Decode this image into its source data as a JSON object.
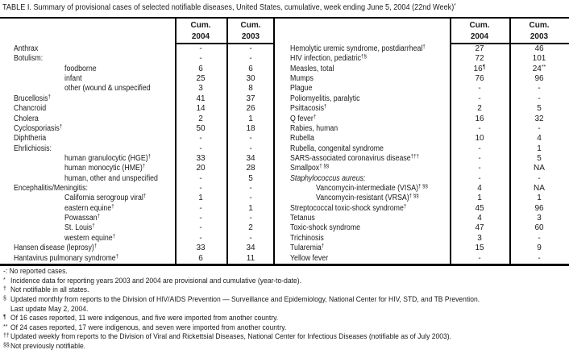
{
  "title": {
    "text": "TABLE I. Summary of provisional cases of selected notifiable diseases, United States, cumulative, week ending June 5, 2004 (22nd Week)",
    "sup": "*"
  },
  "columns": {
    "cum": "Cum.",
    "year_2004": "2004",
    "year_2003": "2003"
  },
  "tables": {
    "left": {
      "rows": [
        {
          "label": "Anthrax",
          "cum2004": "-",
          "cum2003": "-"
        },
        {
          "label": "Botulism:",
          "cum2004": "-",
          "cum2003": "-"
        },
        {
          "label": "foodborne",
          "indent": 1,
          "cum2004": "6",
          "cum2003": "6"
        },
        {
          "label": "infant",
          "indent": 1,
          "cum2004": "25",
          "cum2003": "30"
        },
        {
          "label": "other (wound & unspecified",
          "indent": 1,
          "cum2004": "3",
          "cum2003": "8"
        },
        {
          "label": "Brucellosis",
          "sup": "†",
          "cum2004": "41",
          "cum2003": "37"
        },
        {
          "label": "Chancroid",
          "cum2004": "14",
          "cum2003": "26"
        },
        {
          "label": "Cholera",
          "cum2004": "2",
          "cum2003": "1"
        },
        {
          "label": "Cyclosporiasis",
          "sup": "†",
          "cum2004": "50",
          "cum2003": "18"
        },
        {
          "label": "Diphtheria",
          "cum2004": "-",
          "cum2003": "-"
        },
        {
          "label": "Ehrlichiosis:",
          "cum2004": "-",
          "cum2003": "-"
        },
        {
          "label": "human granulocytic (HGE)",
          "sup": "†",
          "indent": 1,
          "cum2004": "33",
          "cum2003": "34"
        },
        {
          "label": "human monocytic (HME)",
          "sup": "†",
          "indent": 1,
          "cum2004": "20",
          "cum2003": "28"
        },
        {
          "label": "human, other and unspecified",
          "indent": 1,
          "cum2004": "-",
          "cum2003": "5"
        },
        {
          "label": "Encephalitis/Meningitis:",
          "cum2004": "-",
          "cum2003": "-"
        },
        {
          "label": "California serogroup viral",
          "sup": "†",
          "indent": 1,
          "cum2004": "1",
          "cum2003": "-"
        },
        {
          "label": "eastern equine",
          "sup": "†",
          "indent": 1,
          "cum2004": "-",
          "cum2003": "1"
        },
        {
          "label": "Powassan",
          "sup": "†",
          "indent": 1,
          "cum2004": "-",
          "cum2003": "-"
        },
        {
          "label": "St. Louis",
          "sup": "†",
          "indent": 1,
          "cum2004": "-",
          "cum2003": "2"
        },
        {
          "label": "western equine",
          "sup": "†",
          "indent": 1,
          "cum2004": "-",
          "cum2003": "-"
        },
        {
          "label": "Hansen disease (leprosy)",
          "sup": "†",
          "cum2004": "33",
          "cum2003": "34"
        },
        {
          "label": "Hantavirus pulmonary syndrome",
          "sup": "†",
          "cum2004": "6",
          "cum2003": "11"
        }
      ]
    },
    "right": {
      "rows": [
        {
          "label": "Hemolytic uremic syndrome, postdiarrheal",
          "sup": "†",
          "cum2004": "27",
          "cum2003": "46"
        },
        {
          "label": "HIV infection, pediatric",
          "sup": "†§",
          "cum2004": "72",
          "cum2003": "101"
        },
        {
          "label": "Measles, total",
          "cum2004": "16",
          "cum2004_sup": "¶",
          "cum2003": "24",
          "cum2003_sup": "**"
        },
        {
          "label": "Mumps",
          "cum2004": "76",
          "cum2003": "96"
        },
        {
          "label": "Plague",
          "cum2004": "-",
          "cum2003": "-"
        },
        {
          "label": "Poliomyelitis, paralytic",
          "cum2004": "-",
          "cum2003": "-"
        },
        {
          "label": "Psittacosis",
          "sup": "†",
          "cum2004": "2",
          "cum2003": "5"
        },
        {
          "label": "Q fever",
          "sup": "†",
          "cum2004": "16",
          "cum2003": "32"
        },
        {
          "label": "Rabies, human",
          "cum2004": "-",
          "cum2003": "-"
        },
        {
          "label": "Rubella",
          "cum2004": "10",
          "cum2003": "4"
        },
        {
          "label": "Rubella, congenital syndrome",
          "cum2004": "-",
          "cum2003": "1"
        },
        {
          "label": "SARS-associated coronavirus disease",
          "sup": "†††",
          "cum2004": "-",
          "cum2003": "5"
        },
        {
          "label": "Smallpox",
          "sup": "† §§",
          "cum2004": "-",
          "cum2003": "NA"
        },
        {
          "label": "Staphylococcus aureus:",
          "italic": 1,
          "cum2004": "-",
          "cum2003": "-"
        },
        {
          "label": "Vancomycin-intermediate (VISA)",
          "sup": "† §§",
          "indent": 1,
          "cum2004": "4",
          "cum2003": "NA"
        },
        {
          "label": "Vancomycin-resistant (VRSA)",
          "sup": "† §§",
          "indent": 1,
          "cum2004": "1",
          "cum2003": "1"
        },
        {
          "label": "Streptococcal toxic-shock syndrome",
          "sup": "†",
          "cum2004": "45",
          "cum2003": "96"
        },
        {
          "label": "Tetanus",
          "cum2004": "4",
          "cum2003": "3"
        },
        {
          "label": "Toxic-shock syndrome",
          "cum2004": "47",
          "cum2003": "60"
        },
        {
          "label": "Trichinosis",
          "cum2004": "3",
          "cum2003": "-"
        },
        {
          "label": "Tularemia",
          "sup": "†",
          "cum2004": "15",
          "cum2003": "9"
        },
        {
          "label": "Yellow fever",
          "cum2004": "-",
          "cum2003": "-"
        }
      ]
    }
  },
  "footnotes": [
    {
      "marker": "",
      "text": "-: No reported cases."
    },
    {
      "marker": "*",
      "text": "Incidence data for reporting years 2003 and 2004 are provisional and cumulative (year-to-date)."
    },
    {
      "marker": "†",
      "text": "Not notifiable in all states."
    },
    {
      "marker": "§",
      "text": "Updated monthly from reports to the Division of HIV/AIDS Prevention — Surveillance and Epidemiology, National Center for HIV, STD, and TB Prevention."
    },
    {
      "marker": "",
      "indent": 1,
      "text": "Last update May 2, 2004."
    },
    {
      "marker": "¶",
      "text": "Of 16 cases reported, 11 were indigenous, and five were imported from another country."
    },
    {
      "marker": "**",
      "text": "Of 24 cases reported, 17 were indigenous, and seven were imported from another country."
    },
    {
      "marker": "††",
      "text": "Updated weekly from reports to the Division of Viral and Rickettsial Diseases, National Center for Infectious Diseases (notifiable as of July 2003)."
    },
    {
      "marker": "§§",
      "text": "Not previously notifiable."
    }
  ],
  "colors": {
    "background": "#ffffff",
    "text": "#1a1a1a",
    "line": "#000000"
  }
}
